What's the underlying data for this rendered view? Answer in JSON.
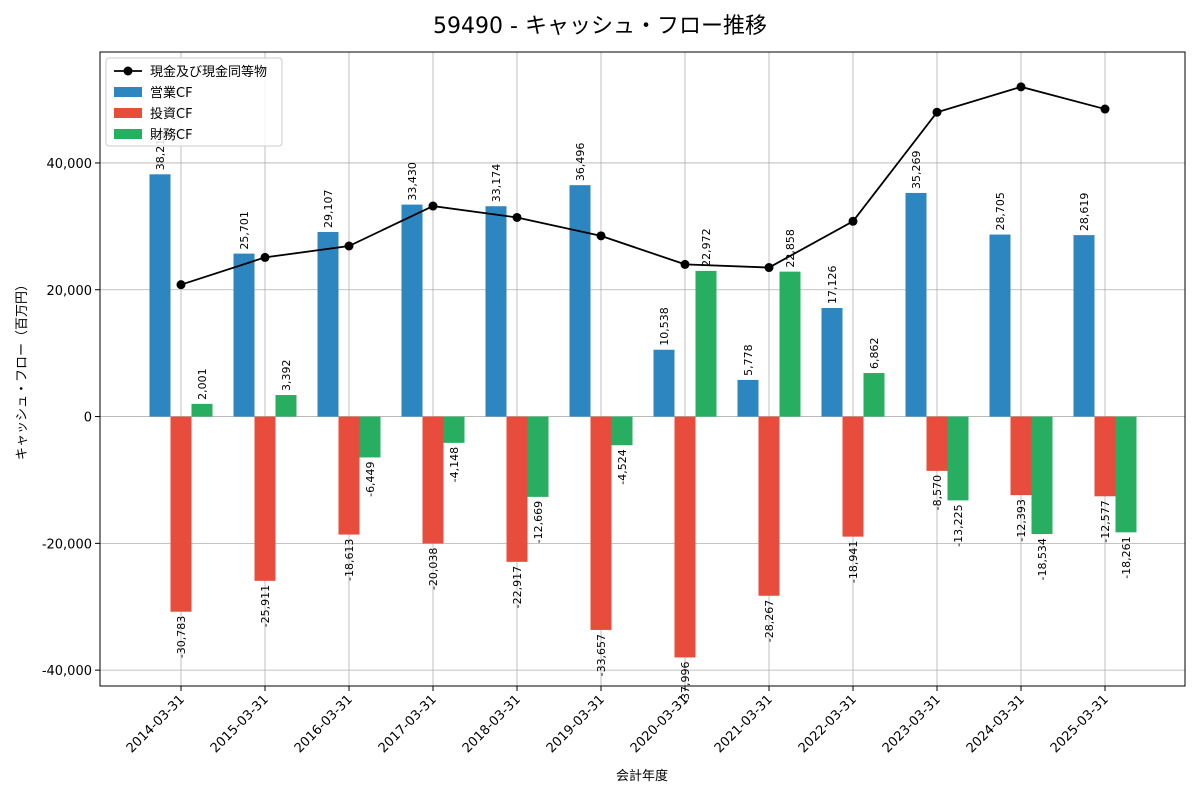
{
  "chart_data": {
    "type": "bar",
    "title": "59490 - キャッシュ・フロー推移",
    "xlabel": "会計年度",
    "ylabel": "キャッシュ・フロー（百万円）",
    "ylim": [
      -42500,
      57500
    ],
    "yticks": [
      -40000,
      -20000,
      0,
      20000,
      40000
    ],
    "ytick_labels": [
      "-40,000",
      "-20,000",
      "0",
      "20,000",
      "40,000"
    ],
    "grid": true,
    "legend_position": "top-left",
    "categories": [
      "2014-03-31",
      "2015-03-31",
      "2016-03-31",
      "2017-03-31",
      "2018-03-31",
      "2019-03-31",
      "2020-03-31",
      "2021-03-31",
      "2022-03-31",
      "2023-03-31",
      "2024-03-31",
      "2025-03-31"
    ],
    "series": [
      {
        "name": "営業CF",
        "kind": "bar",
        "color": "#2e86c1",
        "values": [
          38210,
          25701,
          29107,
          33430,
          33174,
          36496,
          10538,
          5778,
          17126,
          35269,
          28705,
          28619
        ],
        "labels": [
          "38,210",
          "25,701",
          "29,107",
          "33,430",
          "33,174",
          "36,496",
          "10,538",
          "5,778",
          "17,126",
          "35,269",
          "28,705",
          "28,619"
        ]
      },
      {
        "name": "投資CF",
        "kind": "bar",
        "color": "#e74c3c",
        "values": [
          -30783,
          -25911,
          -18613,
          -20038,
          -22917,
          -33657,
          -37996,
          -28267,
          -18941,
          -8570,
          -12393,
          -12577
        ],
        "labels": [
          "-30,783",
          "-25,911",
          "-18,613",
          "-20,038",
          "-22,917",
          "-33,657",
          "-37,996",
          "-28,267",
          "-18,941",
          "-8,570",
          "-12,393",
          "-12,577"
        ]
      },
      {
        "name": "財務CF",
        "kind": "bar",
        "color": "#27ae60",
        "values": [
          2001,
          3392,
          -6449,
          -4148,
          -12669,
          -4524,
          22972,
          22858,
          6862,
          -13225,
          -18534,
          -18261
        ],
        "labels": [
          "2,001",
          "3,392",
          "-6,449",
          "-4,148",
          "-12,669",
          "-4,524",
          "22,972",
          "22,858",
          "6,862",
          "-13,225",
          "-18,534",
          "-18,261"
        ]
      },
      {
        "name": "現金及び現金同等物",
        "kind": "line",
        "color": "#000000",
        "values": [
          20800,
          25100,
          26900,
          33200,
          31400,
          28500,
          24000,
          23500,
          30800,
          48000,
          52000,
          48500
        ]
      }
    ]
  }
}
